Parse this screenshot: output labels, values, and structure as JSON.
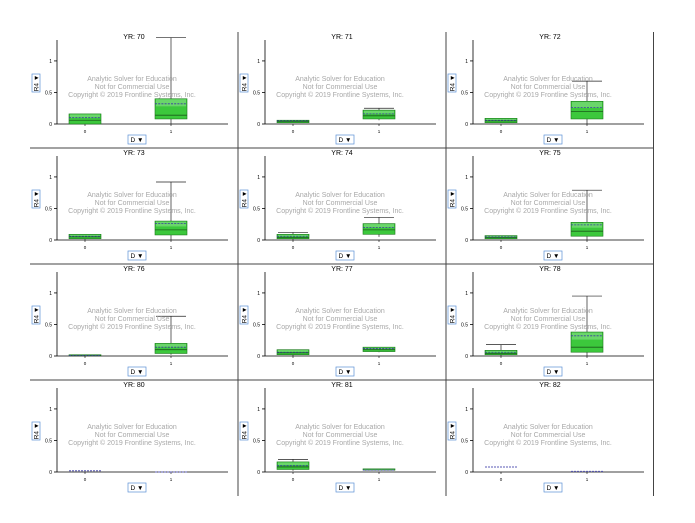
{
  "watermark": {
    "line1": "Analytic Solver for Education",
    "line2": "Not for Commercial Use",
    "line3": "Copyright © 2019 Frontline Systems, Inc."
  },
  "y_selector_label": "R4 ▼",
  "x_selector_label": "D ▼",
  "chart_data": [
    {
      "type": "box",
      "title": "YR: 70",
      "categories": [
        "0",
        "1"
      ],
      "ylim": [
        0,
        1.3
      ],
      "yticks": [
        "0",
        "0.5",
        "1"
      ],
      "boxes": [
        {
          "category": "0",
          "min": 0.0,
          "q1": 0.0,
          "median": 0.06,
          "mean": 0.1,
          "q3": 0.16,
          "max": 0.16
        },
        {
          "category": "1",
          "min": 0.0,
          "q1": 0.08,
          "median": 0.14,
          "mean": 0.32,
          "q3": 0.4,
          "max": 1.37
        }
      ]
    },
    {
      "type": "box",
      "title": "YR: 71",
      "categories": [
        "0",
        "1"
      ],
      "ylim": [
        0,
        1.3
      ],
      "yticks": [
        "0",
        "0.5",
        "1"
      ],
      "boxes": [
        {
          "category": "0",
          "min": 0.02,
          "q1": 0.02,
          "median": 0.04,
          "mean": 0.05,
          "q3": 0.06,
          "max": 0.06
        },
        {
          "category": "1",
          "min": 0.06,
          "q1": 0.08,
          "median": 0.13,
          "mean": 0.16,
          "q3": 0.22,
          "max": 0.25
        }
      ]
    },
    {
      "type": "box",
      "title": "YR: 72",
      "categories": [
        "0",
        "1"
      ],
      "ylim": [
        0,
        1.3
      ],
      "yticks": [
        "0",
        "0.5",
        "1"
      ],
      "boxes": [
        {
          "category": "0",
          "min": 0.02,
          "q1": 0.02,
          "median": 0.05,
          "mean": 0.06,
          "q3": 0.09,
          "max": 0.09
        },
        {
          "category": "1",
          "min": 0.0,
          "q1": 0.08,
          "median": 0.2,
          "mean": 0.26,
          "q3": 0.36,
          "max": 0.68
        }
      ]
    },
    {
      "type": "box",
      "title": "YR: 73",
      "categories": [
        "0",
        "1"
      ],
      "ylim": [
        0,
        1.3
      ],
      "yticks": [
        "0",
        "0.5",
        "1"
      ],
      "boxes": [
        {
          "category": "0",
          "min": 0.0,
          "q1": 0.02,
          "median": 0.05,
          "mean": 0.06,
          "q3": 0.09,
          "max": 0.09
        },
        {
          "category": "1",
          "min": 0.0,
          "q1": 0.08,
          "median": 0.16,
          "mean": 0.26,
          "q3": 0.3,
          "max": 0.92
        }
      ]
    },
    {
      "type": "box",
      "title": "YR: 74",
      "categories": [
        "0",
        "1"
      ],
      "ylim": [
        0,
        1.3
      ],
      "yticks": [
        "0",
        "0.5",
        "1"
      ],
      "boxes": [
        {
          "category": "0",
          "min": 0.0,
          "q1": 0.02,
          "median": 0.04,
          "mean": 0.06,
          "q3": 0.09,
          "max": 0.12
        },
        {
          "category": "1",
          "min": 0.05,
          "q1": 0.09,
          "median": 0.16,
          "mean": 0.2,
          "q3": 0.26,
          "max": 0.36
        }
      ]
    },
    {
      "type": "box",
      "title": "YR: 75",
      "categories": [
        "0",
        "1"
      ],
      "ylim": [
        0,
        1.3
      ],
      "yticks": [
        "0",
        "0.5",
        "1"
      ],
      "boxes": [
        {
          "category": "0",
          "min": 0.02,
          "q1": 0.02,
          "median": 0.04,
          "mean": 0.05,
          "q3": 0.07,
          "max": 0.07
        },
        {
          "category": "1",
          "min": 0.0,
          "q1": 0.06,
          "median": 0.14,
          "mean": 0.24,
          "q3": 0.28,
          "max": 0.79
        }
      ]
    },
    {
      "type": "box",
      "title": "YR: 76",
      "categories": [
        "0",
        "1"
      ],
      "ylim": [
        0,
        1.3
      ],
      "yticks": [
        "0",
        "0.5",
        "1"
      ],
      "boxes": [
        {
          "category": "0",
          "min": 0.01,
          "q1": 0.01,
          "median": 0.01,
          "mean": 0.01,
          "q3": 0.02,
          "max": 0.02
        },
        {
          "category": "1",
          "min": 0.02,
          "q1": 0.04,
          "median": 0.1,
          "mean": 0.14,
          "q3": 0.2,
          "max": 0.63
        }
      ]
    },
    {
      "type": "box",
      "title": "YR: 77",
      "categories": [
        "0",
        "1"
      ],
      "ylim": [
        0,
        1.3
      ],
      "yticks": [
        "0",
        "0.5",
        "1"
      ],
      "boxes": [
        {
          "category": "0",
          "min": 0.0,
          "q1": 0.02,
          "median": 0.05,
          "mean": 0.06,
          "q3": 0.1,
          "max": 0.1
        },
        {
          "category": "1",
          "min": 0.06,
          "q1": 0.07,
          "median": 0.1,
          "mean": 0.12,
          "q3": 0.14,
          "max": 0.14
        }
      ]
    },
    {
      "type": "box",
      "title": "YR: 78",
      "categories": [
        "0",
        "1"
      ],
      "ylim": [
        0,
        1.3
      ],
      "yticks": [
        "0",
        "0.5",
        "1"
      ],
      "boxes": [
        {
          "category": "0",
          "min": 0.0,
          "q1": 0.02,
          "median": 0.04,
          "mean": 0.06,
          "q3": 0.09,
          "max": 0.18
        },
        {
          "category": "1",
          "min": 0.0,
          "q1": 0.06,
          "median": 0.14,
          "mean": 0.32,
          "q3": 0.38,
          "max": 0.95
        }
      ]
    },
    {
      "type": "box",
      "title": "YR: 80",
      "categories": [
        "0",
        "1"
      ],
      "ylim": [
        0,
        1.3
      ],
      "yticks": [
        "0",
        "0.5",
        "1"
      ],
      "boxes": [
        {
          "category": "0",
          "min": 0.02,
          "q1": 0.02,
          "median": 0.02,
          "mean": 0.02,
          "q3": 0.02,
          "max": 0.02
        },
        {
          "category": "1",
          "min": 0.0,
          "q1": 0.0,
          "median": 0.0,
          "mean": 0.0,
          "q3": 0.0,
          "max": 0.0
        }
      ]
    },
    {
      "type": "box",
      "title": "YR: 81",
      "categories": [
        "0",
        "1"
      ],
      "ylim": [
        0,
        1.3
      ],
      "yticks": [
        "0",
        "0.5",
        "1"
      ],
      "boxes": [
        {
          "category": "0",
          "min": 0.02,
          "q1": 0.04,
          "median": 0.08,
          "mean": 0.1,
          "q3": 0.16,
          "max": 0.2
        },
        {
          "category": "1",
          "min": 0.03,
          "q1": 0.03,
          "median": 0.03,
          "mean": 0.03,
          "q3": 0.05,
          "max": 0.05
        }
      ]
    },
    {
      "type": "box",
      "title": "YR: 82",
      "categories": [
        "0",
        "1"
      ],
      "ylim": [
        0,
        1.3
      ],
      "yticks": [
        "0",
        "0.5",
        "1"
      ],
      "boxes": [
        {
          "category": "0",
          "min": 0.08,
          "q1": 0.08,
          "median": 0.08,
          "mean": 0.08,
          "q3": 0.08,
          "max": 0.08
        },
        {
          "category": "1",
          "min": 0.01,
          "q1": 0.01,
          "median": 0.01,
          "mean": 0.01,
          "q3": 0.01,
          "max": 0.01
        }
      ]
    }
  ],
  "colors": {
    "box_fill": "#3cc83c",
    "box_fill_light": "#8fe28f",
    "box_stroke": "#1a7a1a",
    "median_line": "#1a5c1a",
    "mean_line": "#3a3aa0",
    "flat_line": "#5a5ab4",
    "whisker": "#222222",
    "axis": "#000000",
    "watermark": "#a8a8a8",
    "selector_border": "#5b8fd6",
    "grid_line": "#444444"
  }
}
